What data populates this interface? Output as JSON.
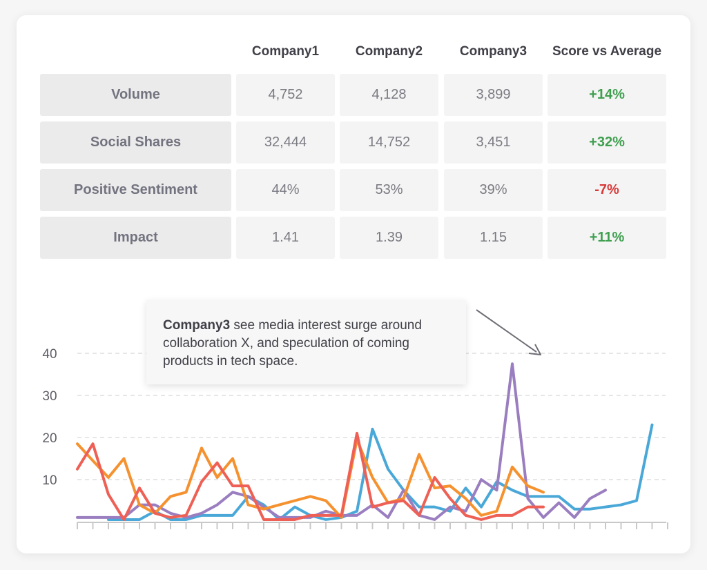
{
  "table": {
    "headers": [
      "Company1",
      "Company2",
      "Company3",
      "Score vs Average"
    ],
    "rows": [
      {
        "label": "Volume",
        "values": [
          "4,752",
          "4,128",
          "3,899"
        ],
        "score": "+14%",
        "score_status": "positive"
      },
      {
        "label": "Social Shares",
        "values": [
          "32,444",
          "14,752",
          "3,451"
        ],
        "score": "+32%",
        "score_status": "positive"
      },
      {
        "label": "Positive Sentiment",
        "values": [
          "44%",
          "53%",
          "39%"
        ],
        "score": "-7%",
        "score_status": "negative"
      },
      {
        "label": "Impact",
        "values": [
          "1.41",
          "1.39",
          "1.15"
        ],
        "score": "+11%",
        "score_status": "positive"
      }
    ]
  },
  "callout": {
    "bold": "Company3",
    "text": " see media interest surge around collaboration X, and speculation of coming products in tech space."
  },
  "colors": {
    "positive": "#3f9f4f",
    "negative": "#d83a3a",
    "series_blue": "#4aa8d8",
    "series_purple": "#9a7ec0",
    "series_orange": "#f5922f",
    "series_red": "#ee6055"
  },
  "chart_data": {
    "type": "line",
    "yticks": [
      10,
      20,
      30,
      40
    ],
    "ylim": [
      0,
      40
    ],
    "x": [
      0,
      1,
      2,
      3,
      4,
      5,
      6,
      7,
      8,
      9,
      10,
      11,
      12,
      13,
      14,
      15,
      16,
      17,
      18,
      19,
      20,
      21,
      22,
      23,
      24,
      25,
      26,
      27,
      28,
      29,
      30,
      31,
      32,
      33,
      34,
      35,
      36,
      37,
      38
    ],
    "series": [
      {
        "name": "blue",
        "color_key": "series_blue",
        "values": [
          null,
          null,
          0.5,
          0.5,
          0.5,
          2.5,
          0.5,
          0.5,
          1.5,
          1.5,
          1.5,
          6,
          4,
          0.5,
          3.5,
          1.5,
          0.5,
          1,
          2.5,
          22,
          12.5,
          7.5,
          3.5,
          3.5,
          2.5,
          8,
          3.5,
          9.5,
          7.5,
          6,
          6,
          6,
          3,
          3,
          3.5,
          4,
          5,
          23,
          null
        ]
      },
      {
        "name": "purple",
        "color_key": "series_purple",
        "values": [
          1,
          1,
          1,
          1,
          4,
          4,
          2,
          1,
          2,
          4,
          7,
          6,
          3.5,
          1,
          1,
          1,
          2.5,
          1.5,
          1.5,
          4,
          1,
          7.5,
          1.5,
          0.5,
          3.5,
          2.5,
          10,
          7.5,
          37.5,
          5.5,
          1,
          4.5,
          1,
          5.5,
          7.5,
          null,
          null,
          null,
          null
        ]
      },
      {
        "name": "orange",
        "color_key": "series_orange",
        "values": [
          18.5,
          14.5,
          10.5,
          15,
          4,
          2,
          6,
          7,
          17.5,
          10.5,
          15,
          4,
          3,
          4,
          5,
          6,
          5,
          1,
          19.5,
          10.5,
          4.5,
          5.5,
          16,
          8,
          8.5,
          5.5,
          1.5,
          2.5,
          13,
          8.5,
          7,
          null,
          null,
          null,
          null,
          null,
          null,
          null,
          null
        ]
      },
      {
        "name": "red",
        "color_key": "series_red",
        "values": [
          12.5,
          18.5,
          6.5,
          0.5,
          8,
          2,
          1,
          1.5,
          9.5,
          14,
          8.5,
          8.5,
          0.5,
          0.5,
          0.5,
          1.5,
          1.5,
          1.5,
          21,
          3.5,
          4.5,
          5,
          1.5,
          10.5,
          5.5,
          1.5,
          0.5,
          1.5,
          1.5,
          3.5,
          3.5,
          null,
          null,
          null,
          null,
          null,
          null,
          null,
          null
        ]
      }
    ]
  }
}
